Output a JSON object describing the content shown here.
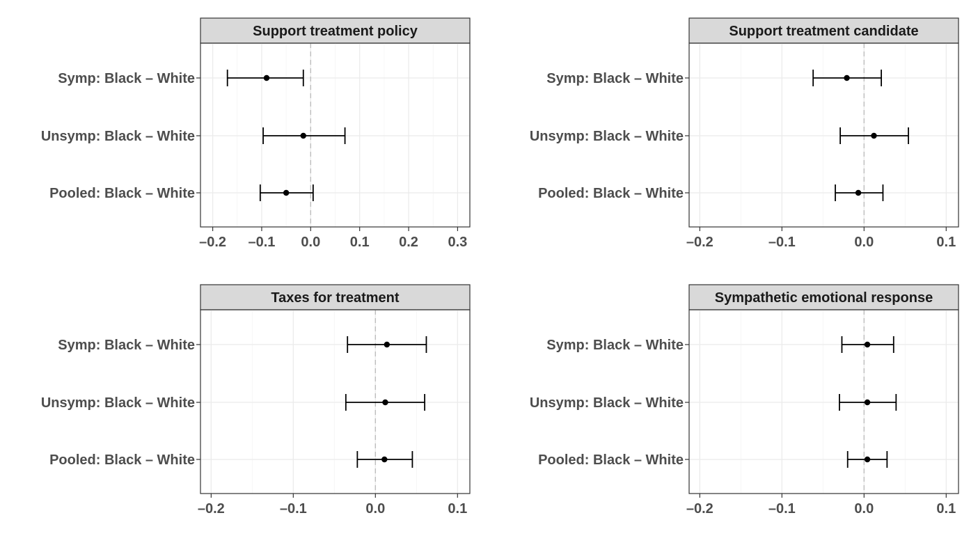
{
  "chart_data": [
    {
      "type": "errorbar",
      "title": "Support treatment policy",
      "categories": [
        "Symp: Black – White",
        "Unsymp: Black – White",
        "Pooled: Black – White"
      ],
      "estimates": [
        -0.09,
        -0.015,
        -0.05
      ],
      "lower": [
        -0.17,
        -0.097,
        -0.103
      ],
      "upper": [
        -0.015,
        0.07,
        0.005
      ],
      "xlim": [
        -0.225,
        0.325
      ],
      "xticks": [
        -0.2,
        -0.1,
        0.0,
        0.1,
        0.2,
        0.3
      ],
      "xtick_labels": [
        "–0.2",
        "–0.1",
        "0.0",
        "0.1",
        "0.2",
        "0.3"
      ],
      "reference_line": 0,
      "grid": true
    },
    {
      "type": "errorbar",
      "title": "Support treatment candidate",
      "categories": [
        "Symp: Black – White",
        "Unsymp: Black – White",
        "Pooled: Black – White"
      ],
      "estimates": [
        -0.021,
        0.012,
        -0.007
      ],
      "lower": [
        -0.062,
        -0.029,
        -0.035
      ],
      "upper": [
        0.021,
        0.054,
        0.023
      ],
      "xlim": [
        -0.213,
        0.115
      ],
      "xticks": [
        -0.2,
        -0.1,
        0.0,
        0.1
      ],
      "xtick_labels": [
        "–0.2",
        "–0.1",
        "0.0",
        "0.1"
      ],
      "reference_line": 0,
      "grid": true
    },
    {
      "type": "errorbar",
      "title": "Taxes for treatment",
      "categories": [
        "Symp: Black – White",
        "Unsymp: Black – White",
        "Pooled: Black – White"
      ],
      "estimates": [
        0.014,
        0.012,
        0.011
      ],
      "lower": [
        -0.034,
        -0.036,
        -0.022
      ],
      "upper": [
        0.062,
        0.06,
        0.045
      ],
      "xlim": [
        -0.213,
        0.115
      ],
      "xticks": [
        -0.2,
        -0.1,
        0.0,
        0.1
      ],
      "xtick_labels": [
        "–0.2",
        "–0.1",
        "0.0",
        "0.1"
      ],
      "reference_line": 0,
      "grid": true
    },
    {
      "type": "errorbar",
      "title": "Sympathetic emotional response",
      "categories": [
        "Symp: Black – White",
        "Unsymp: Black – White",
        "Pooled: Black – White"
      ],
      "estimates": [
        0.004,
        0.004,
        0.004
      ],
      "lower": [
        -0.027,
        -0.03,
        -0.02
      ],
      "upper": [
        0.036,
        0.039,
        0.028
      ],
      "xlim": [
        -0.213,
        0.115
      ],
      "xticks": [
        -0.2,
        -0.1,
        0.0,
        0.1
      ],
      "xtick_labels": [
        "–0.2",
        "–0.1",
        "0.0",
        "0.1"
      ],
      "reference_line": 0,
      "grid": true
    }
  ]
}
